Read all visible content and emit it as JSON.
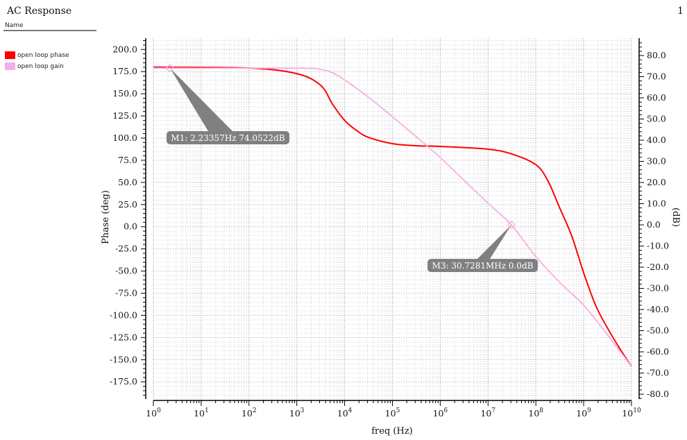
{
  "window": {
    "title": "AC Response",
    "page_number": "1",
    "name_header": "Name"
  },
  "legend": [
    {
      "label": "open loop phase",
      "color": "#ff0000"
    },
    {
      "label": "open loop gain",
      "color": "#f2b0e4"
    }
  ],
  "chart_data": {
    "type": "line",
    "xlabel": "freq (Hz)",
    "ylabel_left": "Phase (deg)",
    "ylabel_right": "(dB)",
    "xscale": "log",
    "xlim": [
      1,
      10000000000
    ],
    "x_ticks": [
      "0",
      "1",
      "2",
      "3",
      "4",
      "5",
      "6",
      "7",
      "8",
      "9",
      "10"
    ],
    "x_tick_base": "10",
    "ylim_left": [
      -195,
      215
    ],
    "ylim_right": [
      -82,
      87
    ],
    "y_ticks_left": [
      "200.0",
      "175.0",
      "150.0",
      "125.0",
      "100.0",
      "75.0",
      "50.0",
      "25.0",
      "0.0",
      "-25.0",
      "-50.0",
      "-75.0",
      "-100.0",
      "-125.0",
      "-150.0",
      "-175.0"
    ],
    "y_ticks_right": [
      "80.0",
      "70.0",
      "60.0",
      "50.0",
      "40.0",
      "30.0",
      "20.0",
      "10.0",
      "0.0",
      "-10.0",
      "-20.0",
      "-30.0",
      "-40.0",
      "-50.0",
      "-60.0",
      "-70.0",
      "-80.0"
    ],
    "grid": true,
    "legend_placement": "top-left outside",
    "series": [
      {
        "name": "open loop phase",
        "axis": "left",
        "color": "#ff0000",
        "log10_freq": [
          0,
          2,
          3,
          3.5,
          3.75,
          4,
          4.25,
          4.5,
          5,
          5.5,
          6,
          7,
          7.5,
          8,
          8.25,
          8.5,
          8.75,
          9,
          9.25,
          9.5,
          9.75,
          10
        ],
        "values": [
          180,
          179,
          172.7,
          159.5,
          138,
          120,
          108.6,
          100.8,
          93.7,
          91.4,
          90.6,
          87.5,
          82,
          70,
          52,
          21,
          -10.4,
          -52,
          -88.7,
          -114.5,
          -137,
          -157.6
        ]
      },
      {
        "name": "open loop gain",
        "axis": "right",
        "color": "#f2b0e4",
        "log10_freq": [
          0,
          3,
          3.5,
          3.75,
          4,
          4.5,
          5,
          5.5,
          6,
          6.5,
          7,
          7.487,
          8,
          8.5,
          9,
          9.5,
          10
        ],
        "values": [
          74.05,
          74.0,
          73.4,
          71.8,
          68.5,
          60.3,
          51.1,
          41.6,
          31.8,
          21,
          10.2,
          0,
          -15,
          -27.2,
          -38,
          -52,
          -66.9
        ]
      }
    ],
    "markers": [
      {
        "label": "M1: 2.23357Hz 74.0522dB",
        "freq": 2.23357,
        "value": 74.0522,
        "axis": "right"
      },
      {
        "label": "M3: 30.7281MHz 0.0dB",
        "freq": 30728100,
        "value": 0.0,
        "axis": "right"
      }
    ]
  }
}
